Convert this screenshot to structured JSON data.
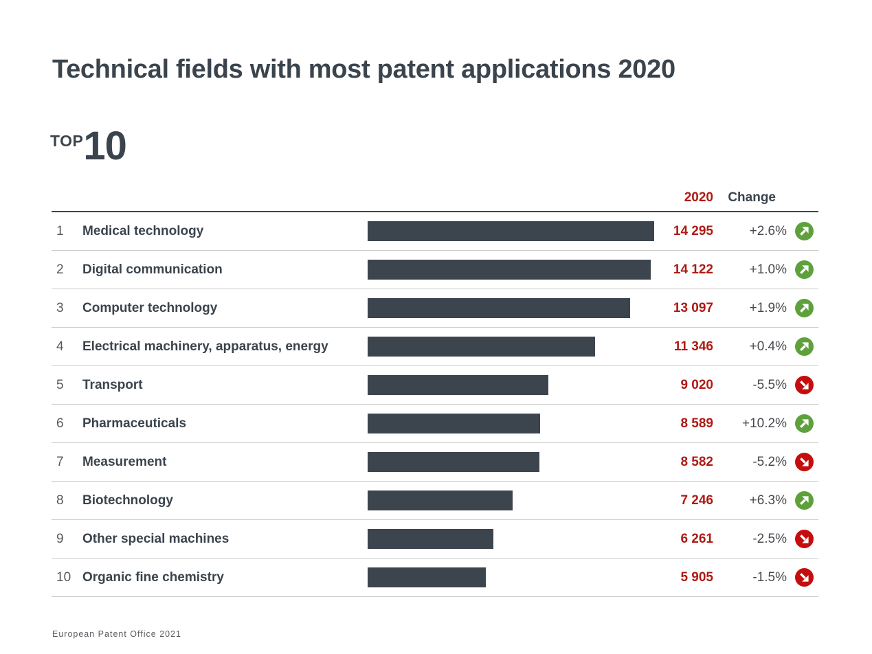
{
  "header": {
    "title": "Technical fields with most patent applications 2020",
    "top_label": "TOP",
    "top_number": "10"
  },
  "table": {
    "col_year": "2020",
    "col_change": "Change",
    "rows": [
      {
        "rank": "1",
        "field": "Medical technology",
        "value": 14295,
        "value_label": "14 295",
        "change": "+2.6%",
        "direction": "up"
      },
      {
        "rank": "2",
        "field": "Digital communication",
        "value": 14122,
        "value_label": "14 122",
        "change": "+1.0%",
        "direction": "up"
      },
      {
        "rank": "3",
        "field": "Computer technology",
        "value": 13097,
        "value_label": "13 097",
        "change": "+1.9%",
        "direction": "up"
      },
      {
        "rank": "4",
        "field": "Electrical machinery, apparatus, energy",
        "value": 11346,
        "value_label": "11 346",
        "change": "+0.4%",
        "direction": "up"
      },
      {
        "rank": "5",
        "field": "Transport",
        "value": 9020,
        "value_label": "9 020",
        "change": "-5.5%",
        "direction": "down"
      },
      {
        "rank": "6",
        "field": "Pharmaceuticals",
        "value": 8589,
        "value_label": "8 589",
        "change": "+10.2%",
        "direction": "up"
      },
      {
        "rank": "7",
        "field": "Measurement",
        "value": 8582,
        "value_label": "8 582",
        "change": "-5.2%",
        "direction": "down"
      },
      {
        "rank": "8",
        "field": "Biotechnology",
        "value": 7246,
        "value_label": "7 246",
        "change": "+6.3%",
        "direction": "up"
      },
      {
        "rank": "9",
        "field": "Other special machines",
        "value": 6261,
        "value_label": "6 261",
        "change": "-2.5%",
        "direction": "down"
      },
      {
        "rank": "10",
        "field": "Organic fine chemistry",
        "value": 5905,
        "value_label": "5 905",
        "change": "-1.5%",
        "direction": "down"
      }
    ]
  },
  "footer": {
    "source": "European Patent Office 2021"
  },
  "colors": {
    "bar": "#3C454E",
    "accent_red_text": "#AD1A13",
    "up_circle_green": "#5EA13C",
    "down_circle_red": "#C60D0E",
    "heading_dark": "#3B444D",
    "rank_gray": "#55595D",
    "divider_gray": "#CBCBCB"
  },
  "chart_data": {
    "type": "bar",
    "orientation": "horizontal",
    "title": "Technical fields with most patent applications 2020",
    "subtitle": "TOP 10",
    "columns": [
      "2020",
      "Change"
    ],
    "categories": [
      "Medical technology",
      "Digital communication",
      "Computer technology",
      "Electrical machinery, apparatus, energy",
      "Transport",
      "Pharmaceuticals",
      "Measurement",
      "Biotechnology",
      "Other special machines",
      "Organic fine chemistry"
    ],
    "values": [
      14295,
      14122,
      13097,
      11346,
      9020,
      8589,
      8582,
      7246,
      6261,
      5905
    ],
    "value_labels": [
      "14 295",
      "14 122",
      "13 097",
      "11 346",
      "9 020",
      "8 589",
      "8 582",
      "7 246",
      "6 261",
      "5 905"
    ],
    "changes_pct": [
      2.6,
      1.0,
      1.9,
      0.4,
      -5.5,
      10.2,
      -5.2,
      6.3,
      -2.5,
      -1.5
    ],
    "change_labels": [
      "+2.6%",
      "+1.0%",
      "+1.9%",
      "+0.4%",
      "-5.5%",
      "+10.2%",
      "-5.2%",
      "+6.3%",
      "-2.5%",
      "-1.5%"
    ],
    "trend_directions": [
      "up",
      "up",
      "up",
      "up",
      "down",
      "up",
      "down",
      "up",
      "down",
      "down"
    ],
    "xlim": [
      0,
      14295
    ],
    "grid": false,
    "legend": false,
    "source": "European Patent Office 2021"
  }
}
